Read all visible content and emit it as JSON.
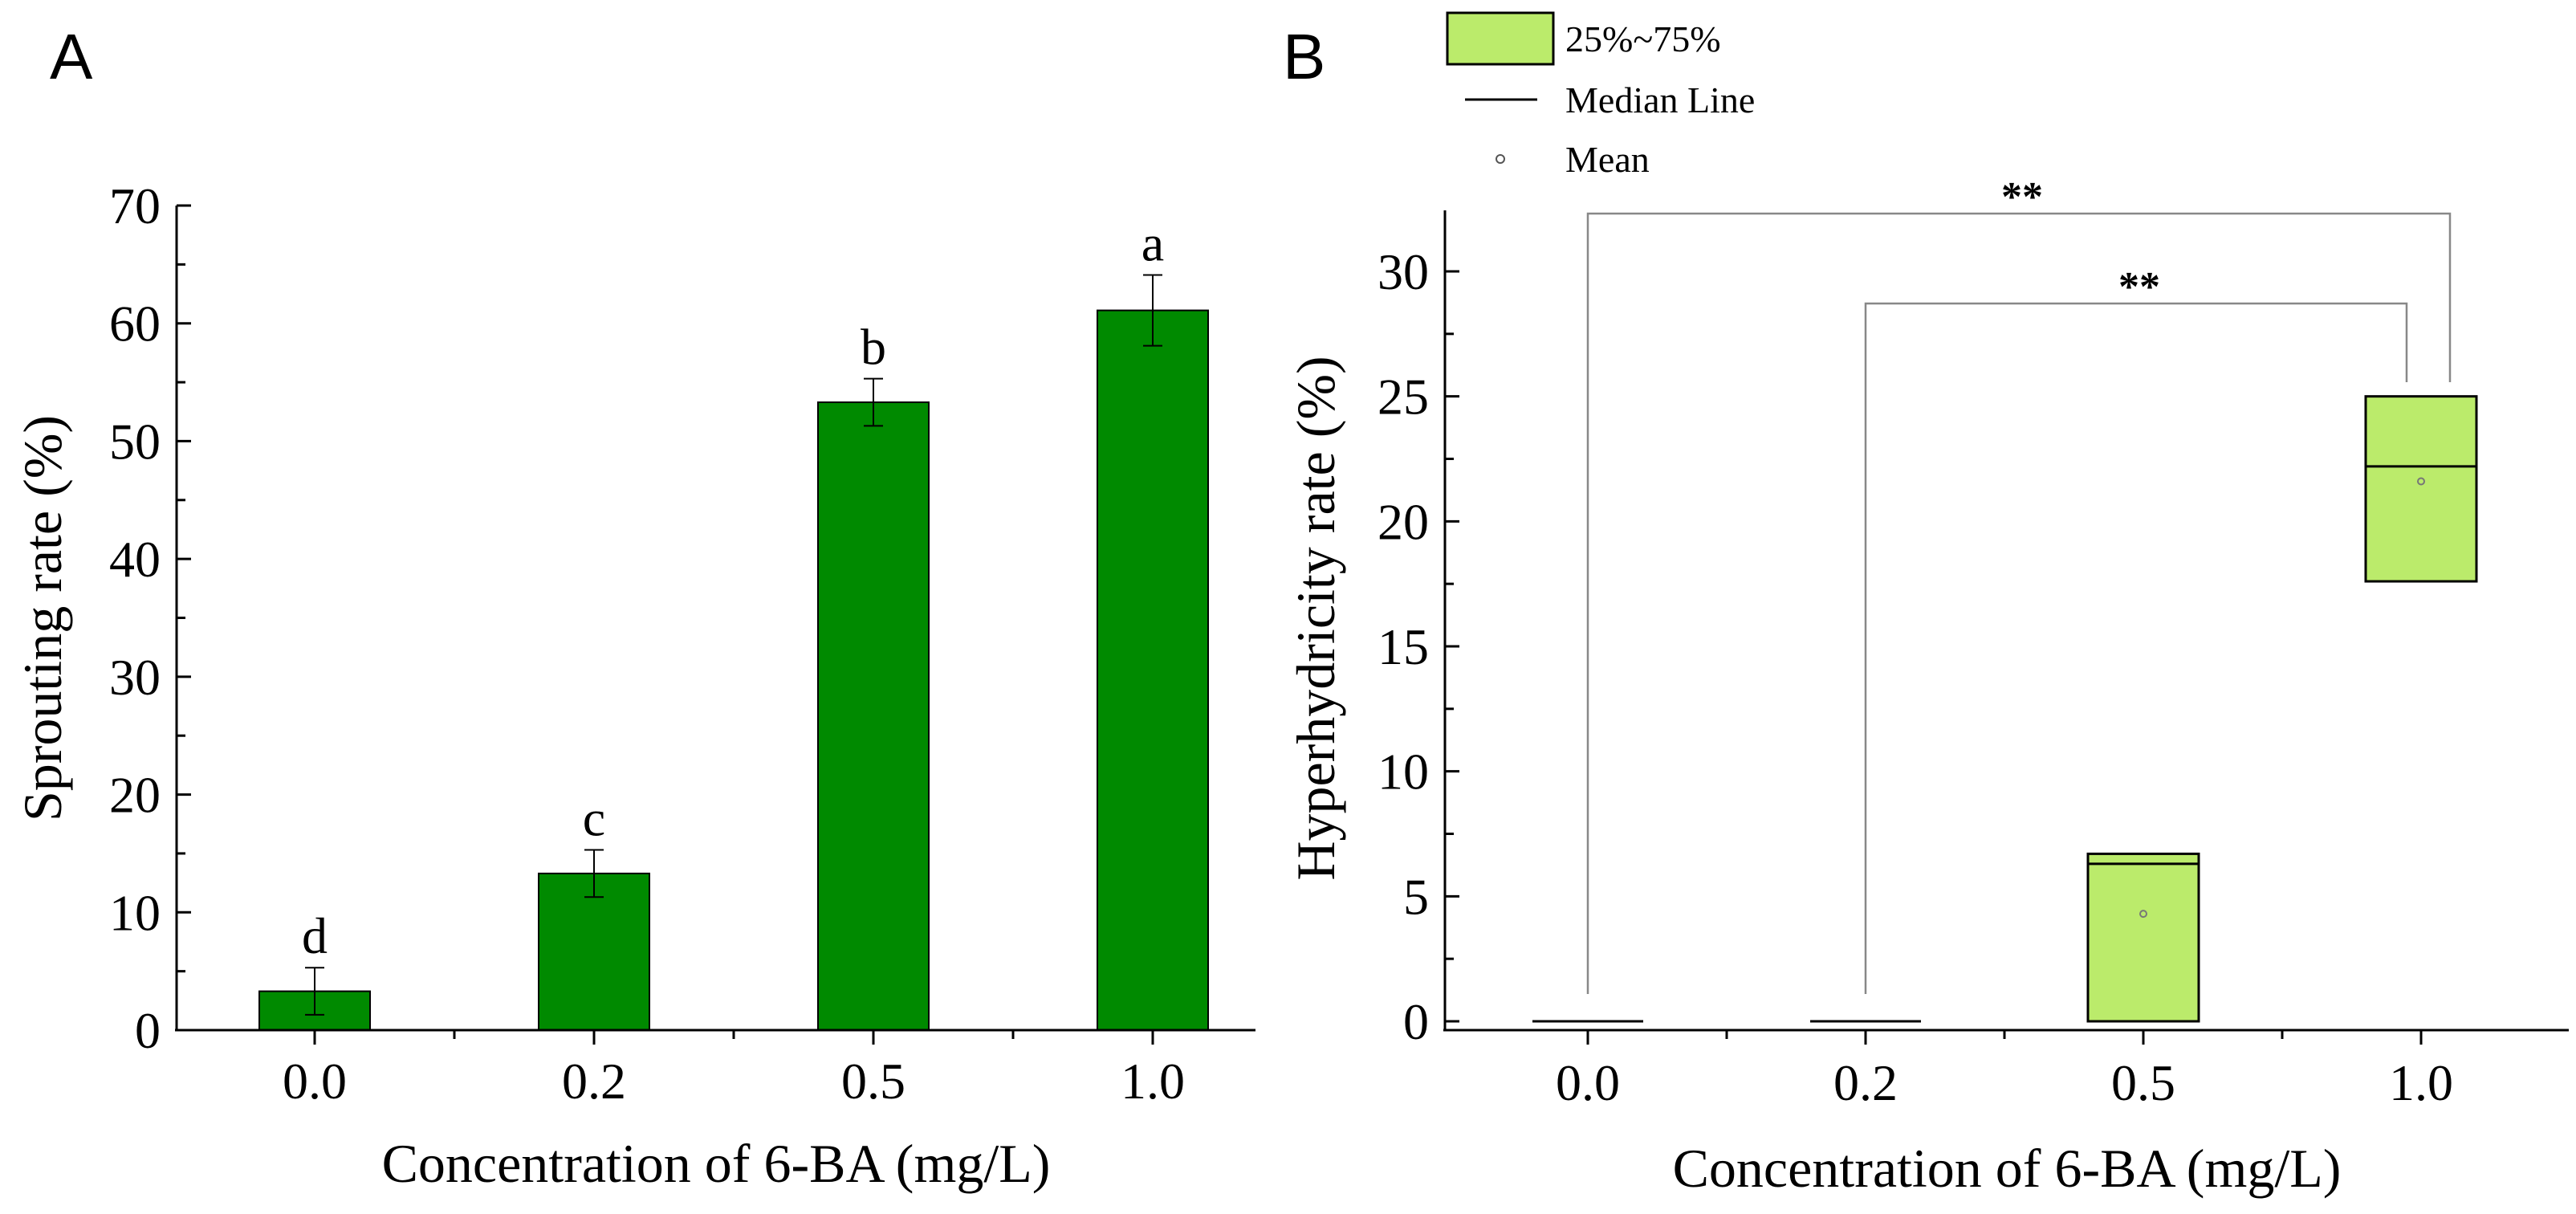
{
  "chart_data": [
    {
      "panel_label": "A",
      "type": "bar",
      "categories": [
        "0.0",
        "0.2",
        "0.5",
        "1.0"
      ],
      "values": [
        3.3,
        13.3,
        53.3,
        61.1
      ],
      "errors": [
        2.0,
        2.0,
        2.0,
        3.0
      ],
      "annotations": [
        "d",
        "c",
        "b",
        "a"
      ],
      "xlabel": "Concentration of 6-BA (mg/L)",
      "ylabel": "Sprouting rate (%)",
      "ylim": [
        0,
        70
      ],
      "yticks": [
        "0",
        "10",
        "20",
        "30",
        "40",
        "50",
        "60",
        "70"
      ],
      "bar_color": "#008a00"
    },
    {
      "panel_label": "B",
      "type": "box",
      "categories": [
        "0.0",
        "0.2",
        "0.5",
        "1.0"
      ],
      "boxes": [
        {
          "q1": 0,
          "median": 0,
          "q3": 0,
          "mean": 0
        },
        {
          "q1": 0,
          "median": 0,
          "q3": 0,
          "mean": 0
        },
        {
          "q1": 0,
          "median": 6.3,
          "q3": 6.7,
          "mean": 4.3
        },
        {
          "q1": 17.6,
          "median": 22.2,
          "q3": 25.0,
          "mean": 21.6
        }
      ],
      "xlabel": "Concentration of 6-BA (mg/L)",
      "ylabel": "Hyperhydricity rate (%)",
      "ylim": [
        -0.5,
        32.5
      ],
      "yticks": [
        "0",
        "5",
        "10",
        "15",
        "20",
        "25",
        "30"
      ],
      "box_color": "#bbeb6b",
      "legend": {
        "box": "25%~75%",
        "median": "Median Line",
        "mean": "Mean"
      },
      "significance": [
        {
          "from": "0.0",
          "to": "1.0",
          "label": "**"
        },
        {
          "from": "0.2",
          "to": "1.0",
          "label": "**"
        }
      ]
    }
  ]
}
